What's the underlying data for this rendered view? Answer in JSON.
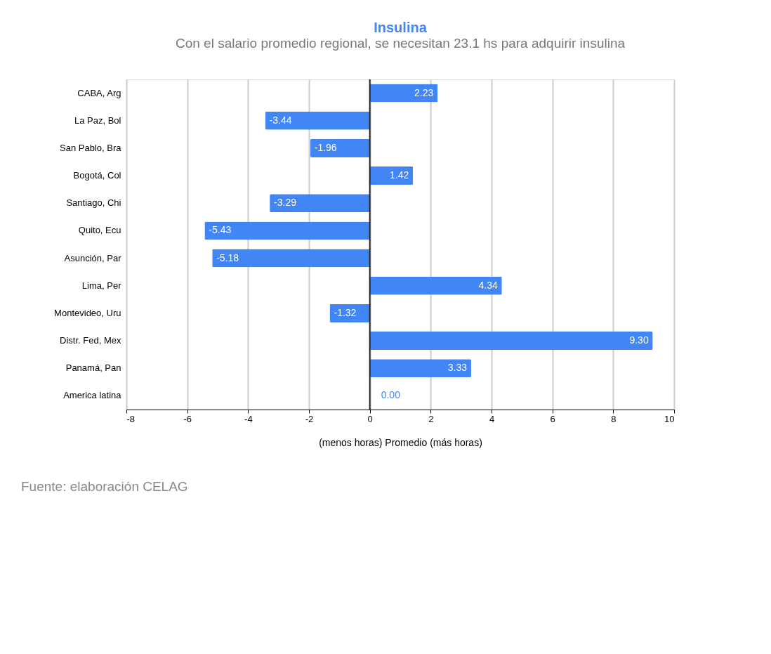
{
  "chart_data": {
    "type": "bar",
    "orientation": "horizontal",
    "title": "Insulina",
    "subtitle": "Con el salario promedio regional, se necesitan 23.1 hs para adquirir insulina",
    "categories": [
      "CABA, Arg",
      "La Paz, Bol",
      "San Pablo, Bra",
      "Bogotá, Col",
      "Santiago, Chi",
      "Quito, Ecu",
      "Asunción, Par",
      "Lima, Per",
      "Montevideo, Uru",
      "Distr. Fed, Mex",
      "Panamá, Pan",
      "America latina"
    ],
    "values": [
      2.23,
      -3.44,
      -1.96,
      1.42,
      -3.29,
      -5.43,
      -5.18,
      4.34,
      -1.32,
      9.3,
      3.33,
      0.0
    ],
    "color": "#4285f4",
    "xlim": [
      -8,
      10
    ],
    "xticks": [
      -8,
      -6,
      -4,
      -2,
      0,
      2,
      4,
      6,
      8,
      10
    ],
    "xlabel": "(menos horas)          Promedio          (más horas)",
    "grid": "x",
    "value_labels": [
      "2.23",
      "-3.44",
      "-1.96",
      "1.42",
      "-3.29",
      "-5.43",
      "-5.18",
      "4.34",
      "-1.32",
      "9.30",
      "3.33",
      "0.00"
    ],
    "ref_lines": [
      {
        "axis": "x",
        "value": 0,
        "color": "#222222"
      }
    ],
    "annotations": [
      "Fuente: elaboración CELAG"
    ]
  }
}
